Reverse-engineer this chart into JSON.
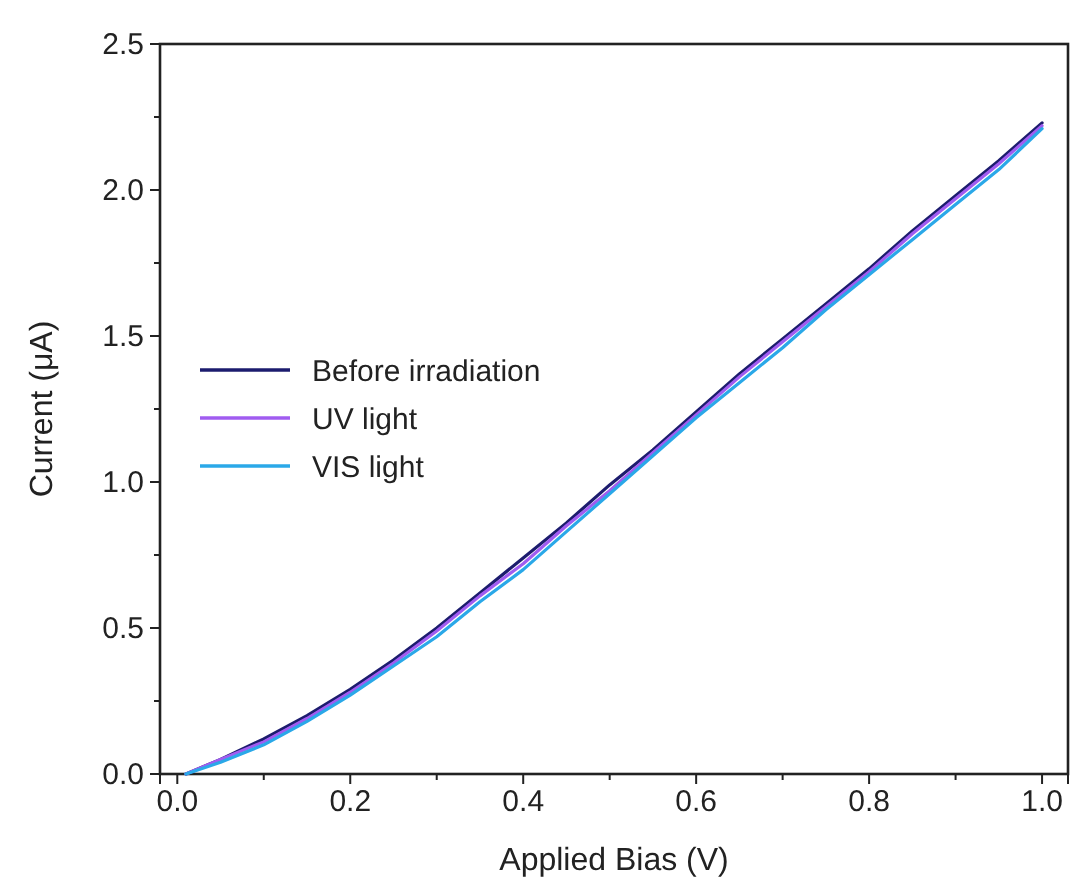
{
  "chart_data": {
    "type": "line",
    "xlabel": "Applied Bias (V)",
    "ylabel": "Current (μA)",
    "x": [
      0.01,
      0.05,
      0.1,
      0.15,
      0.2,
      0.25,
      0.3,
      0.35,
      0.4,
      0.45,
      0.5,
      0.55,
      0.6,
      0.65,
      0.7,
      0.75,
      0.8,
      0.85,
      0.9,
      0.95,
      1.0
    ],
    "series": [
      {
        "name": "Before irradiation",
        "color": "#1c1c6e",
        "values": [
          0,
          0.05,
          0.12,
          0.2,
          0.29,
          0.39,
          0.5,
          0.62,
          0.74,
          0.86,
          0.99,
          1.11,
          1.24,
          1.37,
          1.49,
          1.61,
          1.73,
          1.86,
          1.98,
          2.1,
          2.23
        ]
      },
      {
        "name": "UV light",
        "color": "#a05cf0",
        "values": [
          0,
          0.05,
          0.11,
          0.19,
          0.28,
          0.38,
          0.49,
          0.61,
          0.72,
          0.85,
          0.97,
          1.1,
          1.23,
          1.36,
          1.48,
          1.6,
          1.72,
          1.85,
          1.97,
          2.09,
          2.22
        ]
      },
      {
        "name": "VIS light",
        "color": "#2aa8e8",
        "values": [
          0,
          0.04,
          0.1,
          0.18,
          0.27,
          0.37,
          0.47,
          0.59,
          0.7,
          0.83,
          0.96,
          1.09,
          1.22,
          1.34,
          1.46,
          1.59,
          1.71,
          1.83,
          1.95,
          2.07,
          2.21
        ]
      }
    ],
    "xlim": [
      -0.02,
      1.03
    ],
    "ylim": [
      0,
      2.5
    ],
    "xticks": [
      {
        "value": 0,
        "label": "0.0"
      },
      {
        "value": 0.1,
        "label": null
      },
      {
        "value": 0.2,
        "label": "0.2"
      },
      {
        "value": 0.3,
        "label": null
      },
      {
        "value": 0.4,
        "label": "0.4"
      },
      {
        "value": 0.5,
        "label": null
      },
      {
        "value": 0.6,
        "label": "0.6"
      },
      {
        "value": 0.7,
        "label": null
      },
      {
        "value": 0.8,
        "label": "0.8"
      },
      {
        "value": 0.9,
        "label": null
      },
      {
        "value": 1.0,
        "label": "1.0"
      }
    ],
    "yticks": [
      {
        "value": 0,
        "label": "0.0"
      },
      {
        "value": 0.25,
        "label": null
      },
      {
        "value": 0.5,
        "label": "0.5"
      },
      {
        "value": 0.75,
        "label": null
      },
      {
        "value": 1.0,
        "label": "1.0"
      },
      {
        "value": 1.25,
        "label": null
      },
      {
        "value": 1.5,
        "label": "1.5"
      },
      {
        "value": 1.75,
        "label": null
      },
      {
        "value": 2.0,
        "label": "2.0"
      },
      {
        "value": 2.25,
        "label": null
      },
      {
        "value": 2.5,
        "label": "2.5"
      }
    ],
    "legend": "left",
    "grid": false,
    "line_style": "solid",
    "marker": "none"
  }
}
